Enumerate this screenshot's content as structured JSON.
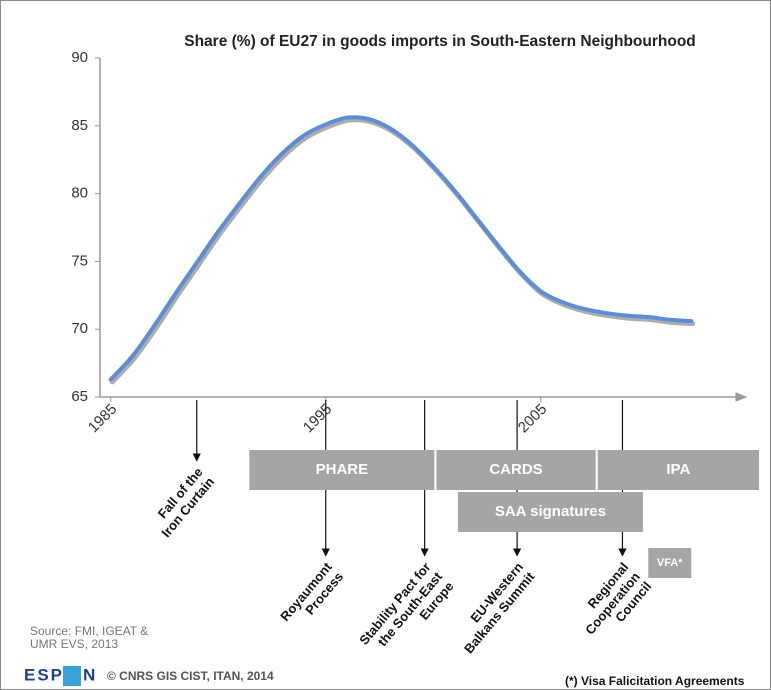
{
  "chart_data": {
    "type": "line",
    "title": "Share (%) of EU27 in goods imports in South-Eastern Neighbourhood",
    "x": [
      1985,
      1986,
      1987,
      1988,
      1989,
      1990,
      1991,
      1992,
      1993,
      1994,
      1995,
      1996,
      1997,
      1998,
      1999,
      2000,
      2001,
      2002,
      2003,
      2004,
      2005,
      2006,
      2007,
      2008,
      2009,
      2010,
      2011,
      2012
    ],
    "values": [
      66.3,
      68.0,
      70.2,
      72.6,
      74.9,
      77.2,
      79.3,
      81.3,
      83.0,
      84.3,
      85.1,
      85.6,
      85.5,
      84.8,
      83.6,
      82.0,
      80.2,
      78.2,
      76.2,
      74.3,
      72.8,
      72.0,
      71.5,
      71.2,
      71.0,
      70.9,
      70.7,
      70.6
    ],
    "color": "#5b8ed6",
    "xlim": [
      1984.5,
      2014.5
    ],
    "xticks": [
      1985,
      1995,
      2005
    ],
    "ylim": [
      65,
      90
    ],
    "yticks": [
      65,
      70,
      75,
      80,
      85,
      90
    ],
    "programmes": [
      {
        "label": "PHARE",
        "start": 1991.4,
        "end": 2000.1
      },
      {
        "label": "CARDS",
        "start": 2000.1,
        "end": 2007.6
      },
      {
        "label": "IPA",
        "start": 2007.6,
        "end": 2015.2
      }
    ],
    "saa": {
      "label": "SAA signatures",
      "start": 2001.1,
      "end": 2009.8
    },
    "vfa": {
      "label": "VFA*",
      "start": 2010,
      "end": 2012
    },
    "events": [
      {
        "year": 1989,
        "label": [
          "Fall of the",
          "Iron Curtain"
        ]
      },
      {
        "year": 1995,
        "label": [
          "Royaumont",
          "Process"
        ]
      },
      {
        "year": 1999.6,
        "label": [
          "Stability Pact for",
          "the South-East",
          "Europe"
        ]
      },
      {
        "year": 2003.9,
        "label": [
          "EU-Western",
          "Balkans Summit"
        ]
      },
      {
        "year": 2008.8,
        "label": [
          "Regional",
          "Cooperation",
          "Council"
        ]
      }
    ],
    "source": [
      "Source: FMI, IGEAT &",
      "UMR EVS, 2013"
    ],
    "logo": [
      "ESP",
      "N"
    ],
    "copyright": "© CNRS GIS CIST, ITAN, 2014",
    "footnote": "(*) Visa Falicitation Agreements"
  }
}
